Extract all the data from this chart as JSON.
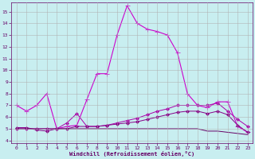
{
  "xlabel": "Windchill (Refroidissement éolien,°C)",
  "bg_color": "#c8eef0",
  "grid_color": "#b0b0b0",
  "xlim": [
    -0.5,
    23.5
  ],
  "ylim": [
    3.8,
    15.8
  ],
  "yticks": [
    4,
    5,
    6,
    7,
    8,
    9,
    10,
    11,
    12,
    13,
    14,
    15
  ],
  "xticks": [
    0,
    1,
    2,
    3,
    4,
    5,
    6,
    7,
    8,
    9,
    10,
    11,
    12,
    13,
    14,
    15,
    16,
    17,
    18,
    19,
    20,
    21,
    22,
    23
  ],
  "lines": [
    {
      "x": [
        0,
        1,
        2,
        3,
        4,
        5,
        6,
        7,
        8,
        9,
        10,
        11,
        12,
        13,
        14,
        15,
        16,
        17,
        18,
        19,
        20,
        21,
        22,
        23
      ],
      "y": [
        7.0,
        6.5,
        7.0,
        8.0,
        5.0,
        5.2,
        5.3,
        7.5,
        9.7,
        9.7,
        13.0,
        15.5,
        14.0,
        13.5,
        13.3,
        13.0,
        11.5,
        8.0,
        7.0,
        6.8,
        7.3,
        7.3,
        5.2,
        4.7
      ],
      "marker": "+",
      "color": "#cc00cc",
      "lw": 0.8,
      "ms": 4
    },
    {
      "x": [
        0,
        1,
        2,
        3,
        4,
        5,
        6,
        7,
        8,
        9,
        10,
        11,
        12,
        13,
        14,
        15,
        16,
        17,
        18,
        19,
        20,
        21,
        22,
        23
      ],
      "y": [
        5.0,
        5.0,
        5.0,
        5.0,
        5.0,
        5.5,
        6.3,
        5.2,
        5.2,
        5.3,
        5.5,
        5.7,
        5.9,
        6.2,
        6.5,
        6.7,
        7.0,
        7.0,
        7.0,
        7.0,
        7.2,
        6.5,
        5.8,
        5.2
      ],
      "marker": "D",
      "color": "#aa00aa",
      "lw": 0.7,
      "ms": 2
    },
    {
      "x": [
        0,
        1,
        2,
        3,
        4,
        5,
        6,
        7,
        8,
        9,
        10,
        11,
        12,
        13,
        14,
        15,
        16,
        17,
        18,
        19,
        20,
        21,
        22,
        23
      ],
      "y": [
        5.1,
        5.1,
        4.9,
        4.8,
        5.0,
        5.0,
        5.2,
        5.2,
        5.2,
        5.3,
        5.4,
        5.5,
        5.6,
        5.8,
        6.0,
        6.2,
        6.4,
        6.5,
        6.5,
        6.3,
        6.5,
        6.2,
        5.3,
        4.7
      ],
      "marker": "D",
      "color": "#880088",
      "lw": 0.7,
      "ms": 2
    },
    {
      "x": [
        0,
        1,
        2,
        3,
        4,
        5,
        6,
        7,
        8,
        9,
        10,
        11,
        12,
        13,
        14,
        15,
        16,
        17,
        18,
        19,
        20,
        21,
        22,
        23
      ],
      "y": [
        5.0,
        5.0,
        5.0,
        5.0,
        5.0,
        5.0,
        5.0,
        5.0,
        5.0,
        5.0,
        5.0,
        5.0,
        5.0,
        5.0,
        5.0,
        5.0,
        5.0,
        5.0,
        5.0,
        4.8,
        4.8,
        4.7,
        4.6,
        4.5
      ],
      "marker": null,
      "color": "#660066",
      "lw": 0.7,
      "ms": 0
    }
  ]
}
